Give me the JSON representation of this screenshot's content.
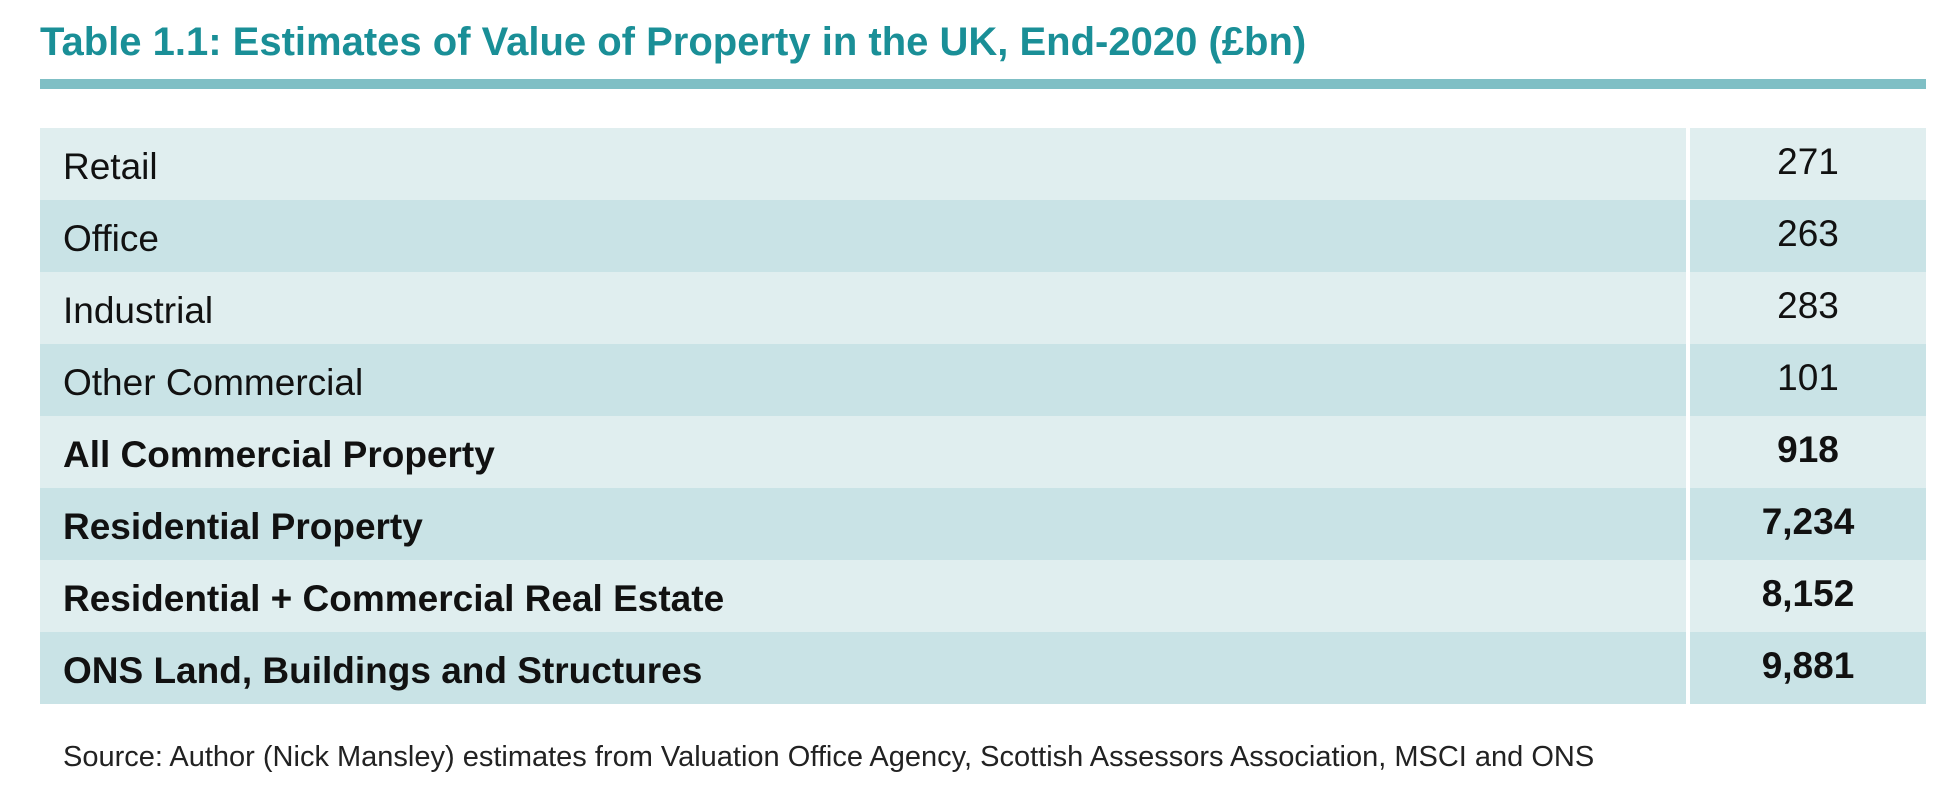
{
  "title": "Table 1.1: Estimates of Value of Property in the UK, End-2020 (£bn)",
  "rows": [
    {
      "label": "Retail",
      "value": "271",
      "bold": false
    },
    {
      "label": "Office",
      "value": "263",
      "bold": false
    },
    {
      "label": "Industrial",
      "value": "283",
      "bold": false
    },
    {
      "label": "Other Commercial",
      "value": "101",
      "bold": false
    },
    {
      "label": "All Commercial Property",
      "value": "918",
      "bold": true
    },
    {
      "label": "Residential Property",
      "value": "7,234",
      "bold": true
    },
    {
      "label": "Residential + Commercial Real Estate",
      "value": "8,152",
      "bold": true
    },
    {
      "label": "ONS Land, Buildings and Structures",
      "value": "9,881",
      "bold": true
    }
  ],
  "source": "Source: Author (Nick Mansley) estimates from Valuation Office Agency, Scottish Assessors Association, MSCI and ONS",
  "colors": {
    "title": "#1a8f97",
    "rule": "#7fbfc5",
    "row_light": "#e0eeef",
    "row_dark": "#c9e3e6"
  }
}
